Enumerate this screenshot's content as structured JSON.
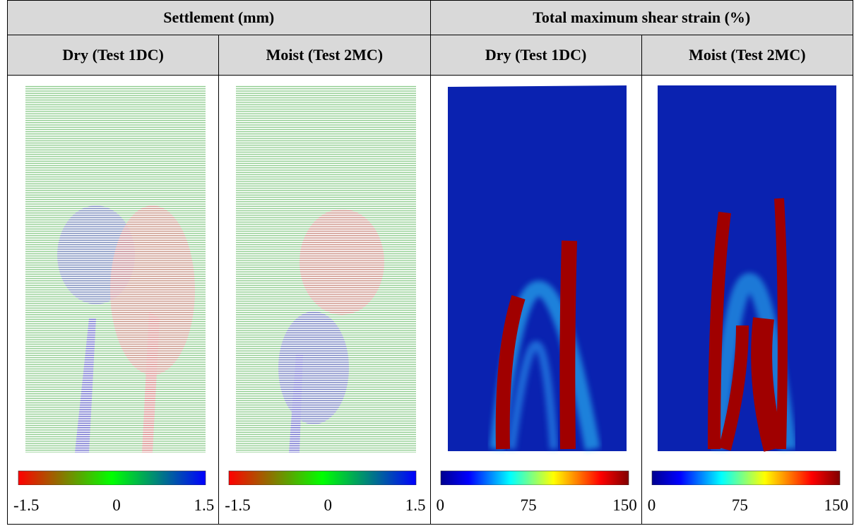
{
  "header": {
    "groups": [
      "Settlement (mm)",
      "Total maximum shear strain (%)"
    ]
  },
  "columns": [
    {
      "title": "Dry (Test 1DC)",
      "colorbar": {
        "ticks": [
          "-1.5",
          "0",
          "1.5"
        ]
      }
    },
    {
      "title": "Moist (Test 2MC)",
      "colorbar": {
        "ticks": [
          "-1.5",
          "0",
          "1.5"
        ]
      }
    },
    {
      "title": "Dry (Test 1DC)",
      "colorbar": {
        "ticks": [
          "0",
          "75",
          "150"
        ]
      }
    },
    {
      "title": "Moist (Test 2MC)",
      "colorbar": {
        "ticks": [
          "0",
          "75",
          "150"
        ]
      }
    }
  ]
}
